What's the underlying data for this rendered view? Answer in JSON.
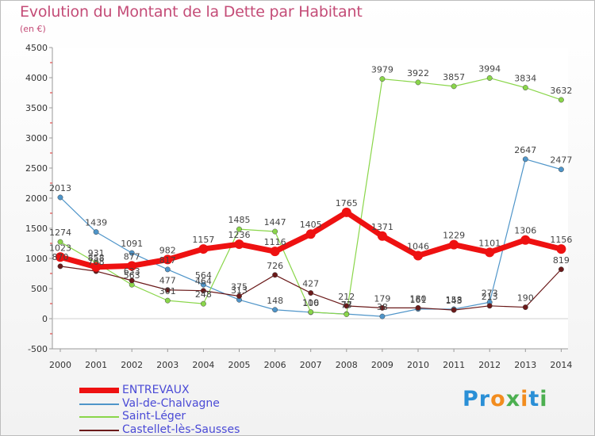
{
  "header": {
    "title": "Evolution du Montant de la Dette par Habitant",
    "unit": "(en €)"
  },
  "logo": {
    "letters": [
      "P",
      "r",
      "o",
      "x",
      "i",
      "t",
      "i"
    ],
    "colors": [
      "#2a8fd6",
      "#2a8fd6",
      "#f28c1e",
      "#4caf50",
      "#f28c1e",
      "#2a8fd6",
      "#4caf50"
    ]
  },
  "chart_data": {
    "type": "line",
    "title": "Evolution du Montant de la Dette par Habitant",
    "ylabel": "(en €)",
    "xlabel": "",
    "ylim": [
      -500,
      4500
    ],
    "yticks": [
      -500,
      0,
      500,
      1000,
      1500,
      2000,
      2500,
      3000,
      3500,
      4000,
      4500
    ],
    "grid": false,
    "legend_position": "bottom-left",
    "x": [
      "2000",
      "2001",
      "2002",
      "2003",
      "2004",
      "2005",
      "2006",
      "2007",
      "2008",
      "2009",
      "2010",
      "2011",
      "2012",
      "2013",
      "2014"
    ],
    "series": [
      {
        "name": "ENTREVAUX",
        "color": "#ee1111",
        "values": [
          1023,
          858,
          877,
          982,
          1157,
          1236,
          1116,
          1405,
          1765,
          1371,
          1046,
          1229,
          1101,
          1306,
          1156
        ]
      },
      {
        "name": "Val-de-Chalvagne",
        "color": "#4f95c9",
        "values": [
          2013,
          1439,
          1091,
          817,
          564,
          313,
          148,
          106,
          77,
          38,
          161,
          158,
          273,
          2647,
          2477
        ]
      },
      {
        "name": "Saint-Léger",
        "color": "#8ad64a",
        "values": [
          1274,
          931,
          563,
          301,
          248,
          1485,
          1447,
          110,
          73,
          3979,
          3922,
          3857,
          3994,
          3834,
          3632
        ]
      },
      {
        "name": "Castellet-lès-Sausses",
        "color": "#6b1a1a",
        "values": [
          870,
          788,
          633,
          477,
          464,
          375,
          726,
          427,
          212,
          179,
          180,
          143,
          213,
          190,
          819
        ]
      }
    ]
  }
}
